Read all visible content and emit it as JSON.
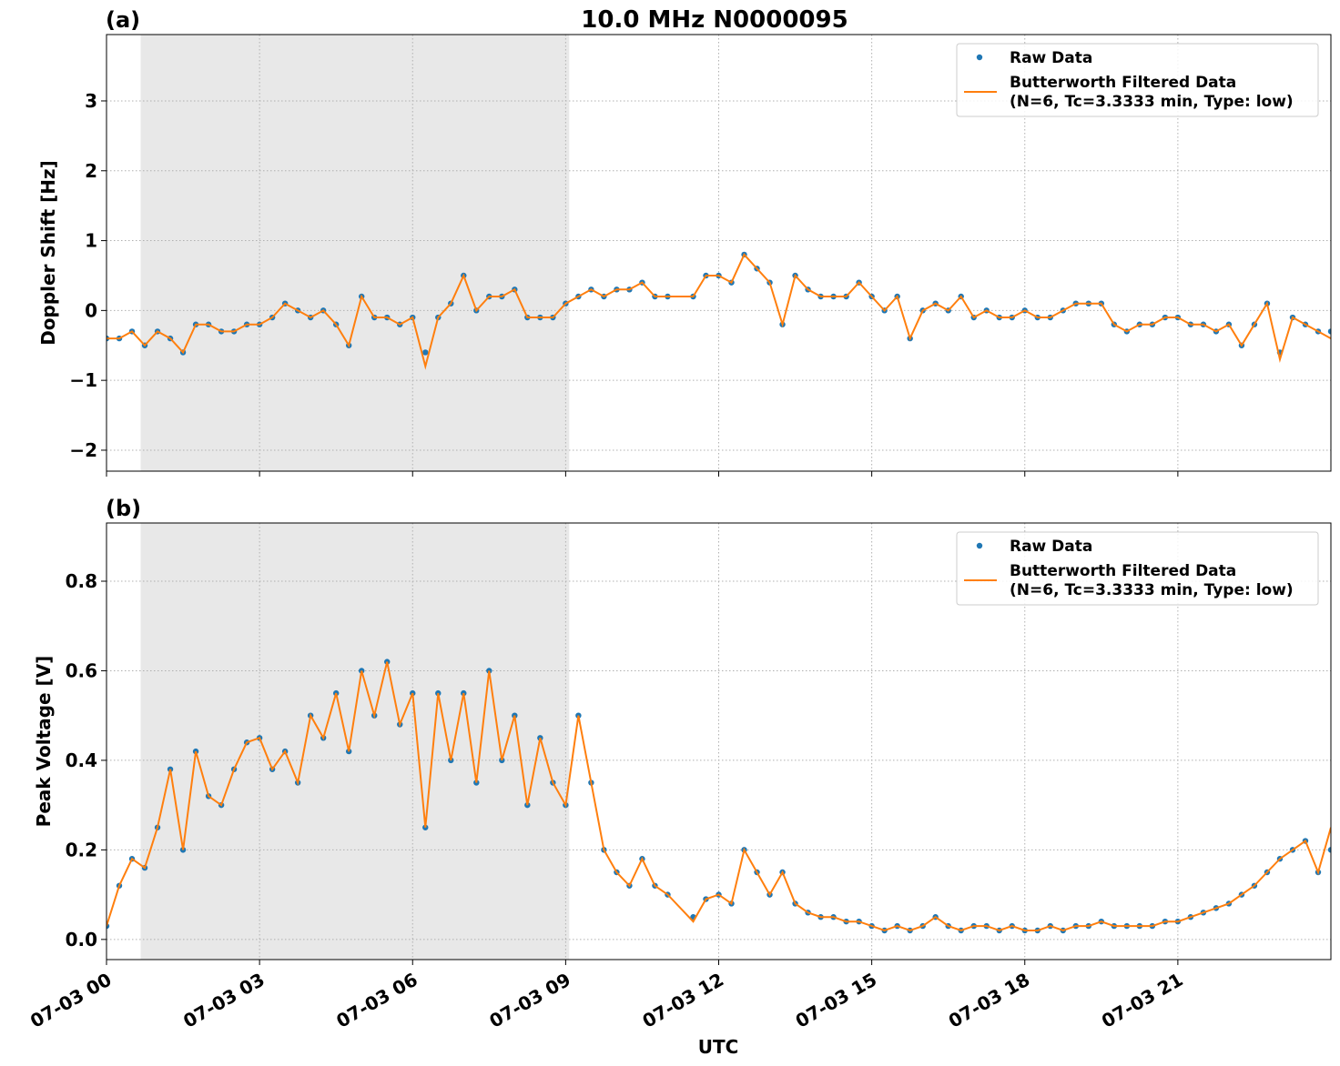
{
  "figure_title": "10.0 MHz N0000095",
  "x_axis_label": "UTC",
  "colors": {
    "raw": "#1f77b4",
    "filtered": "#ff7f0e",
    "night_shade": "#e8e8e8",
    "grid": "#b0b0b0"
  },
  "chart_data": [
    {
      "type": "scatter",
      "panel_label": "(a)",
      "title": "10.0 MHz N0000095",
      "xlabel": "",
      "ylabel": "Doppler Shift [Hz]",
      "xlim": [
        0,
        24
      ],
      "ylim": [
        -2.3,
        3.95
      ],
      "x_ticks": [
        0,
        3,
        6,
        9,
        12,
        15,
        18,
        21
      ],
      "x_tick_labels": [
        "",
        "",
        "",
        "",
        "",
        "",
        "",
        ""
      ],
      "y_ticks": [
        -2,
        -1,
        0,
        1,
        2,
        3
      ],
      "y_tick_labels": [
        "−2",
        "−1",
        "0",
        "1",
        "2",
        "3"
      ],
      "grid": true,
      "shaded_x_range": [
        0.67,
        9.07
      ],
      "legend": {
        "placement": "top-right",
        "entries": [
          "Raw Data",
          "Butterworth Filtered Data",
          "(N=6, Tc=3.3333 min, Type: low)"
        ]
      },
      "series": [
        {
          "name": "Raw Data",
          "style": "points",
          "x": [
            0,
            0.25,
            0.5,
            0.75,
            1,
            1.25,
            1.5,
            1.75,
            2,
            2.25,
            2.5,
            2.75,
            3,
            3.25,
            3.5,
            3.75,
            4,
            4.25,
            4.5,
            4.75,
            5,
            5.25,
            5.5,
            5.75,
            6,
            6.25,
            6.5,
            6.75,
            7,
            7.25,
            7.5,
            7.75,
            8,
            8.25,
            8.5,
            8.75,
            9,
            9.25,
            9.5,
            9.75,
            10,
            10.25,
            10.5,
            10.75,
            11,
            11.5,
            11.75,
            12,
            12.25,
            12.5,
            12.75,
            13,
            13.25,
            13.5,
            13.75,
            14,
            14.25,
            14.5,
            14.75,
            15,
            15.25,
            15.5,
            15.75,
            16,
            16.25,
            16.5,
            16.75,
            17,
            17.25,
            17.5,
            17.75,
            18,
            18.25,
            18.5,
            18.75,
            19,
            19.25,
            19.5,
            19.75,
            20,
            20.25,
            20.5,
            20.75,
            21,
            21.25,
            21.5,
            21.75,
            22,
            22.25,
            22.5,
            22.75,
            23,
            23.25,
            23.5,
            23.75,
            24
          ],
          "y": [
            -0.4,
            -0.4,
            -0.3,
            -0.5,
            -0.3,
            -0.4,
            -0.6,
            -0.2,
            -0.2,
            -0.3,
            -0.3,
            -0.2,
            -0.2,
            -0.1,
            0.1,
            0,
            -0.1,
            0,
            -0.2,
            -0.5,
            0.2,
            -0.1,
            -0.1,
            -0.2,
            -0.1,
            -0.6,
            -0.1,
            0.1,
            0.5,
            0,
            0.2,
            0.2,
            0.3,
            -0.1,
            -0.1,
            -0.1,
            0.1,
            0.2,
            0.3,
            0.2,
            0.3,
            0.3,
            0.4,
            0.2,
            0.2,
            0.2,
            0.5,
            0.5,
            0.4,
            0.8,
            0.6,
            0.4,
            -0.2,
            0.5,
            0.3,
            0.2,
            0.2,
            0.2,
            0.4,
            0.2,
            0,
            0.2,
            -0.4,
            0,
            0.1,
            0,
            0.2,
            -0.1,
            0,
            -0.1,
            -0.1,
            0,
            -0.1,
            -0.1,
            0,
            0.1,
            0.1,
            0.1,
            -0.2,
            -0.3,
            -0.2,
            -0.2,
            -0.1,
            -0.1,
            -0.2,
            -0.2,
            -0.3,
            -0.2,
            -0.5,
            -0.2,
            0.1,
            -0.6,
            -0.1,
            -0.2,
            -0.3,
            -0.3
          ]
        },
        {
          "name": "Butterworth Filtered Data",
          "style": "line",
          "x": [
            0,
            0.25,
            0.5,
            0.75,
            1,
            1.25,
            1.5,
            1.75,
            2,
            2.25,
            2.5,
            2.75,
            3,
            3.25,
            3.5,
            3.75,
            4,
            4.25,
            4.5,
            4.75,
            5,
            5.25,
            5.5,
            5.75,
            6,
            6.25,
            6.5,
            6.75,
            7,
            7.25,
            7.5,
            7.75,
            8,
            8.25,
            8.5,
            8.75,
            9,
            9.25,
            9.5,
            9.75,
            10,
            10.25,
            10.5,
            10.75,
            11,
            11.5,
            11.75,
            12,
            12.25,
            12.5,
            12.75,
            13,
            13.25,
            13.5,
            13.75,
            14,
            14.25,
            14.5,
            14.75,
            15,
            15.25,
            15.5,
            15.75,
            16,
            16.25,
            16.5,
            16.75,
            17,
            17.25,
            17.5,
            17.75,
            18,
            18.25,
            18.5,
            18.75,
            19,
            19.25,
            19.5,
            19.75,
            20,
            20.25,
            20.5,
            20.75,
            21,
            21.25,
            21.5,
            21.75,
            22,
            22.25,
            22.5,
            22.75,
            23,
            23.25,
            23.5,
            23.75,
            24
          ],
          "y": [
            -0.4,
            -0.4,
            -0.3,
            -0.5,
            -0.3,
            -0.4,
            -0.6,
            -0.2,
            -0.2,
            -0.3,
            -0.3,
            -0.2,
            -0.2,
            -0.1,
            0.1,
            0,
            -0.1,
            0,
            -0.2,
            -0.5,
            0.2,
            -0.1,
            -0.1,
            -0.2,
            -0.1,
            -0.8,
            -0.1,
            0.1,
            0.5,
            0,
            0.2,
            0.2,
            0.3,
            -0.1,
            -0.1,
            -0.1,
            0.1,
            0.2,
            0.3,
            0.2,
            0.3,
            0.3,
            0.4,
            0.2,
            0.2,
            0.2,
            0.5,
            0.5,
            0.4,
            0.8,
            0.6,
            0.4,
            -0.2,
            0.5,
            0.3,
            0.2,
            0.2,
            0.2,
            0.4,
            0.2,
            0,
            0.2,
            -0.4,
            0,
            0.1,
            0,
            0.2,
            -0.1,
            0,
            -0.1,
            -0.1,
            0,
            -0.1,
            -0.1,
            0,
            0.1,
            0.1,
            0.1,
            -0.2,
            -0.3,
            -0.2,
            -0.2,
            -0.1,
            -0.1,
            -0.2,
            -0.2,
            -0.3,
            -0.2,
            -0.5,
            -0.2,
            0.1,
            -0.7,
            -0.1,
            -0.2,
            -0.3,
            -0.4
          ]
        }
      ]
    },
    {
      "type": "scatter",
      "panel_label": "(b)",
      "title": "",
      "xlabel": "UTC",
      "ylabel": "Peak Voltage [V]",
      "xlim": [
        0,
        24
      ],
      "ylim": [
        -0.045,
        0.93
      ],
      "x_ticks": [
        0,
        3,
        6,
        9,
        12,
        15,
        18,
        21
      ],
      "x_tick_labels": [
        "07-03 00",
        "07-03 03",
        "07-03 06",
        "07-03 09",
        "07-03 12",
        "07-03 15",
        "07-03 18",
        "07-03 21"
      ],
      "y_ticks": [
        0.0,
        0.2,
        0.4,
        0.6,
        0.8
      ],
      "y_tick_labels": [
        "0.0",
        "0.2",
        "0.4",
        "0.6",
        "0.8"
      ],
      "grid": true,
      "shaded_x_range": [
        0.67,
        9.07
      ],
      "legend": {
        "placement": "top-right",
        "entries": [
          "Raw Data",
          "Butterworth Filtered Data",
          "(N=6, Tc=3.3333 min, Type: low)"
        ]
      },
      "series": [
        {
          "name": "Raw Data",
          "style": "points",
          "x": [
            0,
            0.25,
            0.5,
            0.75,
            1,
            1.25,
            1.5,
            1.75,
            2,
            2.25,
            2.5,
            2.75,
            3,
            3.25,
            3.5,
            3.75,
            4,
            4.25,
            4.5,
            4.75,
            5,
            5.25,
            5.5,
            5.75,
            6,
            6.25,
            6.5,
            6.75,
            7,
            7.25,
            7.5,
            7.75,
            8,
            8.25,
            8.5,
            8.75,
            9,
            9.25,
            9.5,
            9.75,
            10,
            10.25,
            10.5,
            10.75,
            11,
            11.5,
            11.75,
            12,
            12.25,
            12.5,
            12.75,
            13,
            13.25,
            13.5,
            13.75,
            14,
            14.25,
            14.5,
            14.75,
            15,
            15.25,
            15.5,
            15.75,
            16,
            16.25,
            16.5,
            16.75,
            17,
            17.25,
            17.5,
            17.75,
            18,
            18.25,
            18.5,
            18.75,
            19,
            19.25,
            19.5,
            19.75,
            20,
            20.25,
            20.5,
            20.75,
            21,
            21.25,
            21.5,
            21.75,
            22,
            22.25,
            22.5,
            22.75,
            23,
            23.25,
            23.5,
            23.75,
            24
          ],
          "y": [
            0.03,
            0.12,
            0.18,
            0.16,
            0.25,
            0.38,
            0.2,
            0.42,
            0.32,
            0.3,
            0.38,
            0.44,
            0.45,
            0.38,
            0.42,
            0.35,
            0.5,
            0.45,
            0.55,
            0.42,
            0.6,
            0.5,
            0.62,
            0.48,
            0.55,
            0.25,
            0.55,
            0.4,
            0.55,
            0.35,
            0.6,
            0.4,
            0.5,
            0.3,
            0.45,
            0.35,
            0.3,
            0.5,
            0.35,
            0.2,
            0.15,
            0.12,
            0.18,
            0.12,
            0.1,
            0.05,
            0.09,
            0.1,
            0.08,
            0.2,
            0.15,
            0.1,
            0.15,
            0.08,
            0.06,
            0.05,
            0.05,
            0.04,
            0.04,
            0.03,
            0.02,
            0.03,
            0.02,
            0.03,
            0.05,
            0.03,
            0.02,
            0.03,
            0.03,
            0.02,
            0.03,
            0.02,
            0.02,
            0.03,
            0.02,
            0.03,
            0.03,
            0.04,
            0.03,
            0.03,
            0.03,
            0.03,
            0.04,
            0.04,
            0.05,
            0.06,
            0.07,
            0.08,
            0.1,
            0.12,
            0.15,
            0.18,
            0.2,
            0.22,
            0.15,
            0.2
          ]
        },
        {
          "name": "Butterworth Filtered Data",
          "style": "line",
          "x": [
            0,
            0.25,
            0.5,
            0.75,
            1,
            1.25,
            1.5,
            1.75,
            2,
            2.25,
            2.5,
            2.75,
            3,
            3.25,
            3.5,
            3.75,
            4,
            4.25,
            4.5,
            4.75,
            5,
            5.25,
            5.5,
            5.75,
            6,
            6.25,
            6.5,
            6.75,
            7,
            7.25,
            7.5,
            7.75,
            8,
            8.25,
            8.5,
            8.75,
            9,
            9.25,
            9.5,
            9.75,
            10,
            10.25,
            10.5,
            10.75,
            11,
            11.5,
            11.75,
            12,
            12.25,
            12.5,
            12.75,
            13,
            13.25,
            13.5,
            13.75,
            14,
            14.25,
            14.5,
            14.75,
            15,
            15.25,
            15.5,
            15.75,
            16,
            16.25,
            16.5,
            16.75,
            17,
            17.25,
            17.5,
            17.75,
            18,
            18.25,
            18.5,
            18.75,
            19,
            19.25,
            19.5,
            19.75,
            20,
            20.25,
            20.5,
            20.75,
            21,
            21.25,
            21.5,
            21.75,
            22,
            22.25,
            22.5,
            22.75,
            23,
            23.25,
            23.5,
            23.75,
            24
          ],
          "y": [
            0.03,
            0.12,
            0.18,
            0.16,
            0.25,
            0.38,
            0.2,
            0.42,
            0.32,
            0.3,
            0.38,
            0.44,
            0.45,
            0.38,
            0.42,
            0.35,
            0.5,
            0.45,
            0.55,
            0.42,
            0.6,
            0.5,
            0.62,
            0.48,
            0.55,
            0.25,
            0.55,
            0.4,
            0.55,
            0.35,
            0.6,
            0.4,
            0.5,
            0.3,
            0.45,
            0.35,
            0.3,
            0.5,
            0.35,
            0.2,
            0.15,
            0.12,
            0.18,
            0.12,
            0.1,
            0.04,
            0.09,
            0.1,
            0.08,
            0.2,
            0.15,
            0.1,
            0.15,
            0.08,
            0.06,
            0.05,
            0.05,
            0.04,
            0.04,
            0.03,
            0.02,
            0.03,
            0.02,
            0.03,
            0.05,
            0.03,
            0.02,
            0.03,
            0.03,
            0.02,
            0.03,
            0.02,
            0.02,
            0.03,
            0.02,
            0.03,
            0.03,
            0.04,
            0.03,
            0.03,
            0.03,
            0.03,
            0.04,
            0.04,
            0.05,
            0.06,
            0.07,
            0.08,
            0.1,
            0.12,
            0.15,
            0.18,
            0.2,
            0.22,
            0.15,
            0.25
          ]
        }
      ]
    }
  ]
}
